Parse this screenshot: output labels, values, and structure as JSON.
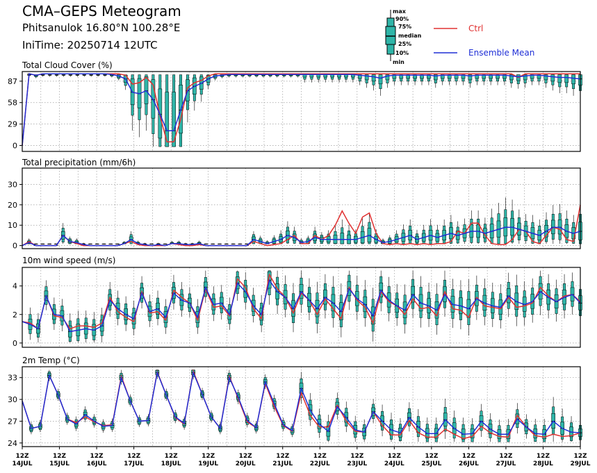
{
  "header": {
    "title": "CMA–GEPS Meteogram",
    "station": "Phitsanulok 16.80°N 100.28°E",
    "init_time": "IniTime: 20250714 12UTC"
  },
  "legend": {
    "box_labels": [
      "max",
      "90%",
      "75%",
      "median",
      "25%",
      "10%",
      "min"
    ],
    "ctrl_label": "Ctrl",
    "mean_label": "Ensemble Mean",
    "ctrl_color": "#e03030",
    "mean_color": "#1f2fd6",
    "box_color": "#2fb5a8"
  },
  "x_labels": [
    {
      "hour": "12Z",
      "date": "14JUL"
    },
    {
      "hour": "12Z",
      "date": "15JUL"
    },
    {
      "hour": "12Z",
      "date": "16JUL"
    },
    {
      "hour": "12Z",
      "date": "17JUL"
    },
    {
      "hour": "12Z",
      "date": "18JUL"
    },
    {
      "hour": "12Z",
      "date": "19JUL"
    },
    {
      "hour": "12Z",
      "date": "20JUL"
    },
    {
      "hour": "12Z",
      "date": "21JUL"
    },
    {
      "hour": "12Z",
      "date": "22JUL"
    },
    {
      "hour": "12Z",
      "date": "23JUL"
    },
    {
      "hour": "12Z",
      "date": "24JUL"
    },
    {
      "hour": "12Z",
      "date": "25JUL"
    },
    {
      "hour": "12Z",
      "date": "26JUL"
    },
    {
      "hour": "12Z",
      "date": "27JUL"
    },
    {
      "hour": "12Z",
      "date": "28JUL"
    },
    {
      "hour": "12Z",
      "date": "29JUL"
    }
  ],
  "chart_data": [
    {
      "type": "line",
      "title": "Total Cloud Cover (%)",
      "ylim": [
        -8,
        100
      ],
      "yticks": [
        0,
        29,
        58,
        87
      ],
      "grid": true,
      "x_step_hours": 6,
      "series": [
        {
          "name": "Ctrl",
          "color": "#e03030",
          "values": [
            0,
            97,
            95,
            97,
            97,
            97,
            97,
            97,
            97,
            97,
            97,
            97,
            97,
            97,
            97,
            95,
            83,
            85,
            92,
            82,
            40,
            5,
            5,
            35,
            78,
            85,
            88,
            94,
            97,
            97,
            97,
            97,
            97,
            97,
            97,
            97,
            97,
            97,
            97,
            97,
            97,
            97,
            97,
            97,
            97,
            97,
            97,
            97,
            97,
            97,
            97,
            97,
            97,
            97,
            97,
            97,
            97,
            97,
            97,
            97,
            97,
            97,
            97,
            97,
            97,
            97,
            97,
            97,
            97,
            97,
            97,
            97,
            92,
            97,
            97,
            97,
            97,
            97,
            97,
            97,
            97,
            97
          ]
        },
        {
          "name": "Ensemble Mean",
          "color": "#1f2fd6",
          "values": [
            0,
            97,
            95,
            97,
            97,
            97,
            97,
            97,
            97,
            97,
            97,
            97,
            97,
            96,
            94,
            90,
            72,
            70,
            74,
            62,
            42,
            20,
            20,
            48,
            74,
            80,
            84,
            90,
            94,
            95,
            96,
            96,
            96,
            96,
            96,
            96,
            96,
            96,
            96,
            96,
            96,
            96,
            96,
            96,
            96,
            96,
            96,
            96,
            96,
            95,
            94,
            93,
            91,
            94,
            95,
            95,
            95,
            95,
            95,
            95,
            94,
            95,
            95,
            95,
            95,
            94,
            95,
            95,
            95,
            95,
            95,
            94,
            93,
            94,
            95,
            95,
            94,
            93,
            92,
            92,
            91,
            90
          ]
        }
      ]
    },
    {
      "type": "line",
      "title": "Total precipitation (mm/6h)",
      "ylim": [
        -1.5,
        38
      ],
      "yticks": [
        0,
        10,
        20,
        30
      ],
      "grid": true,
      "x_step_hours": 6,
      "series": [
        {
          "name": "Ctrl",
          "color": "#e03030",
          "values": [
            0,
            2,
            0,
            0,
            0,
            0,
            5,
            2,
            1,
            0,
            0,
            0,
            0,
            0,
            0,
            1,
            2,
            0.5,
            0,
            0,
            0,
            0,
            1,
            0.5,
            0,
            0,
            0.5,
            0,
            0,
            0,
            0,
            0,
            0,
            0,
            2,
            1,
            0,
            0.5,
            1,
            3,
            5,
            1,
            1,
            5,
            3,
            5,
            10,
            17,
            11,
            6,
            14,
            16,
            6,
            1,
            0.5,
            1,
            0.5,
            1,
            0.5,
            1,
            0.5,
            1,
            1,
            2,
            7,
            6,
            11,
            11,
            5,
            1,
            0.5,
            0.5,
            3,
            8,
            7,
            2,
            1,
            5,
            9,
            8,
            3,
            2,
            20
          ]
        },
        {
          "name": "Ensemble Mean",
          "color": "#1f2fd6",
          "values": [
            0,
            1.5,
            0,
            0,
            0,
            0,
            5,
            2,
            1.5,
            0.5,
            0,
            0,
            0,
            0,
            0,
            1,
            3,
            1,
            0.5,
            0,
            0.5,
            0,
            1,
            1,
            0.5,
            0.5,
            1,
            0,
            0,
            0,
            0,
            0,
            0,
            0,
            3,
            2,
            1,
            2,
            3,
            5,
            4,
            1.5,
            2,
            4,
            3,
            3,
            3,
            3,
            3,
            3,
            4,
            5,
            3,
            1.5,
            2,
            3,
            4,
            5,
            3,
            4,
            5,
            4,
            5,
            6,
            5,
            6,
            7,
            7,
            6,
            7,
            8,
            9,
            9,
            8,
            7,
            6,
            5,
            7,
            9,
            9,
            7,
            6,
            7
          ]
        }
      ]
    },
    {
      "type": "line",
      "title": "10m wind speed (m/s)",
      "ylim": [
        -0.3,
        5.3
      ],
      "yticks": [
        0,
        2,
        4
      ],
      "grid": true,
      "x_step_hours": 6,
      "series": [
        {
          "name": "Ctrl",
          "color": "#e03030",
          "values": [
            1.5,
            1.4,
            1.0,
            3.3,
            1.9,
            1.8,
            1.0,
            1.2,
            1.2,
            1.1,
            1.4,
            3.2,
            2.2,
            1.8,
            1.5,
            3.6,
            2.1,
            2.2,
            1.6,
            3.7,
            3.2,
            2.8,
            1.6,
            3.8,
            2.5,
            2.6,
            1.9,
            4.5,
            3.9,
            2.4,
            1.7,
            4.8,
            3.8,
            3.2,
            2.1,
            3.5,
            3.0,
            2.0,
            3.1,
            2.4,
            1.7,
            3.9,
            3.0,
            2.5,
            1.4,
            3.6,
            2.9,
            2.6,
            2.0,
            3.1,
            2.4,
            2.5,
            1.9,
            3.6,
            2.4,
            2.3,
            1.8,
            3.2,
            2.6,
            2.5,
            2.4,
            3.2,
            2.5,
            2.6,
            2.8,
            3.9,
            3.3,
            2.9,
            3.3,
            3.4,
            2.9
          ]
        },
        {
          "name": "Ensemble Mean",
          "color": "#1f2fd6",
          "values": [
            1.5,
            1.3,
            1.0,
            3.3,
            2.0,
            1.9,
            0.8,
            0.9,
            1.0,
            0.9,
            1.2,
            3.0,
            2.4,
            2.0,
            1.7,
            3.5,
            2.2,
            2.4,
            1.8,
            3.5,
            3.0,
            2.8,
            1.8,
            3.9,
            2.7,
            2.8,
            2.0,
            4.2,
            3.6,
            2.6,
            2.0,
            4.4,
            3.6,
            3.2,
            2.4,
            3.6,
            3.0,
            2.4,
            3.2,
            2.8,
            2.2,
            3.8,
            3.1,
            2.7,
            1.9,
            3.7,
            3.0,
            2.6,
            2.3,
            3.4,
            2.8,
            2.6,
            2.3,
            3.4,
            2.7,
            2.6,
            2.4,
            3.1,
            2.8,
            2.6,
            2.5,
            3.3,
            2.9,
            2.7,
            2.9,
            3.6,
            3.2,
            2.9,
            3.2,
            3.4,
            2.8
          ]
        }
      ]
    },
    {
      "type": "line",
      "title": "2m Temp (°C)",
      "ylim": [
        23.5,
        34.5
      ],
      "yticks": [
        24,
        27,
        30,
        33
      ],
      "grid": true,
      "x_step_hours": 6,
      "series": [
        {
          "name": "Ctrl",
          "color": "#e03030",
          "values": [
            29.8,
            26.0,
            26.3,
            33.3,
            30.6,
            27.3,
            26.8,
            27.6,
            26.9,
            26.4,
            26.5,
            33.2,
            29.8,
            27.0,
            27.1,
            33.8,
            30.6,
            27.5,
            26.6,
            33.9,
            30.7,
            27.6,
            26.0,
            33.2,
            30.1,
            26.9,
            26.1,
            32.2,
            29.0,
            26.4,
            25.6,
            30.9,
            27.8,
            26.2,
            26.2,
            29.2,
            27.0,
            25.6,
            25.5,
            28.3,
            26.4,
            25.1,
            25.1,
            27.1,
            25.4,
            24.8,
            24.8,
            25.9,
            25.2,
            24.6,
            24.9,
            26.3,
            25.4,
            24.9,
            24.8,
            27.8,
            26.2,
            25.0,
            24.8,
            25.2,
            24.9,
            25.0,
            25.4
          ]
        },
        {
          "name": "Ensemble Mean",
          "color": "#1f2fd6",
          "values": [
            29.8,
            26.0,
            26.3,
            33.3,
            30.6,
            27.3,
            26.6,
            27.9,
            27.0,
            26.3,
            26.4,
            33.0,
            29.8,
            27.0,
            27.1,
            33.7,
            30.6,
            27.6,
            26.7,
            33.7,
            30.7,
            27.6,
            26.0,
            33.0,
            30.3,
            27.1,
            26.1,
            32.4,
            29.4,
            26.5,
            25.7,
            31.5,
            28.5,
            26.6,
            25.6,
            29.0,
            27.5,
            25.8,
            25.5,
            28.3,
            27.0,
            25.8,
            25.4,
            27.5,
            26.2,
            25.3,
            25.3,
            27.2,
            26.0,
            25.2,
            25.3,
            27.0,
            25.9,
            25.2,
            25.2,
            27.3,
            26.2,
            25.3,
            25.2,
            27.0,
            26.0,
            25.5,
            25.4
          ]
        }
      ]
    }
  ]
}
